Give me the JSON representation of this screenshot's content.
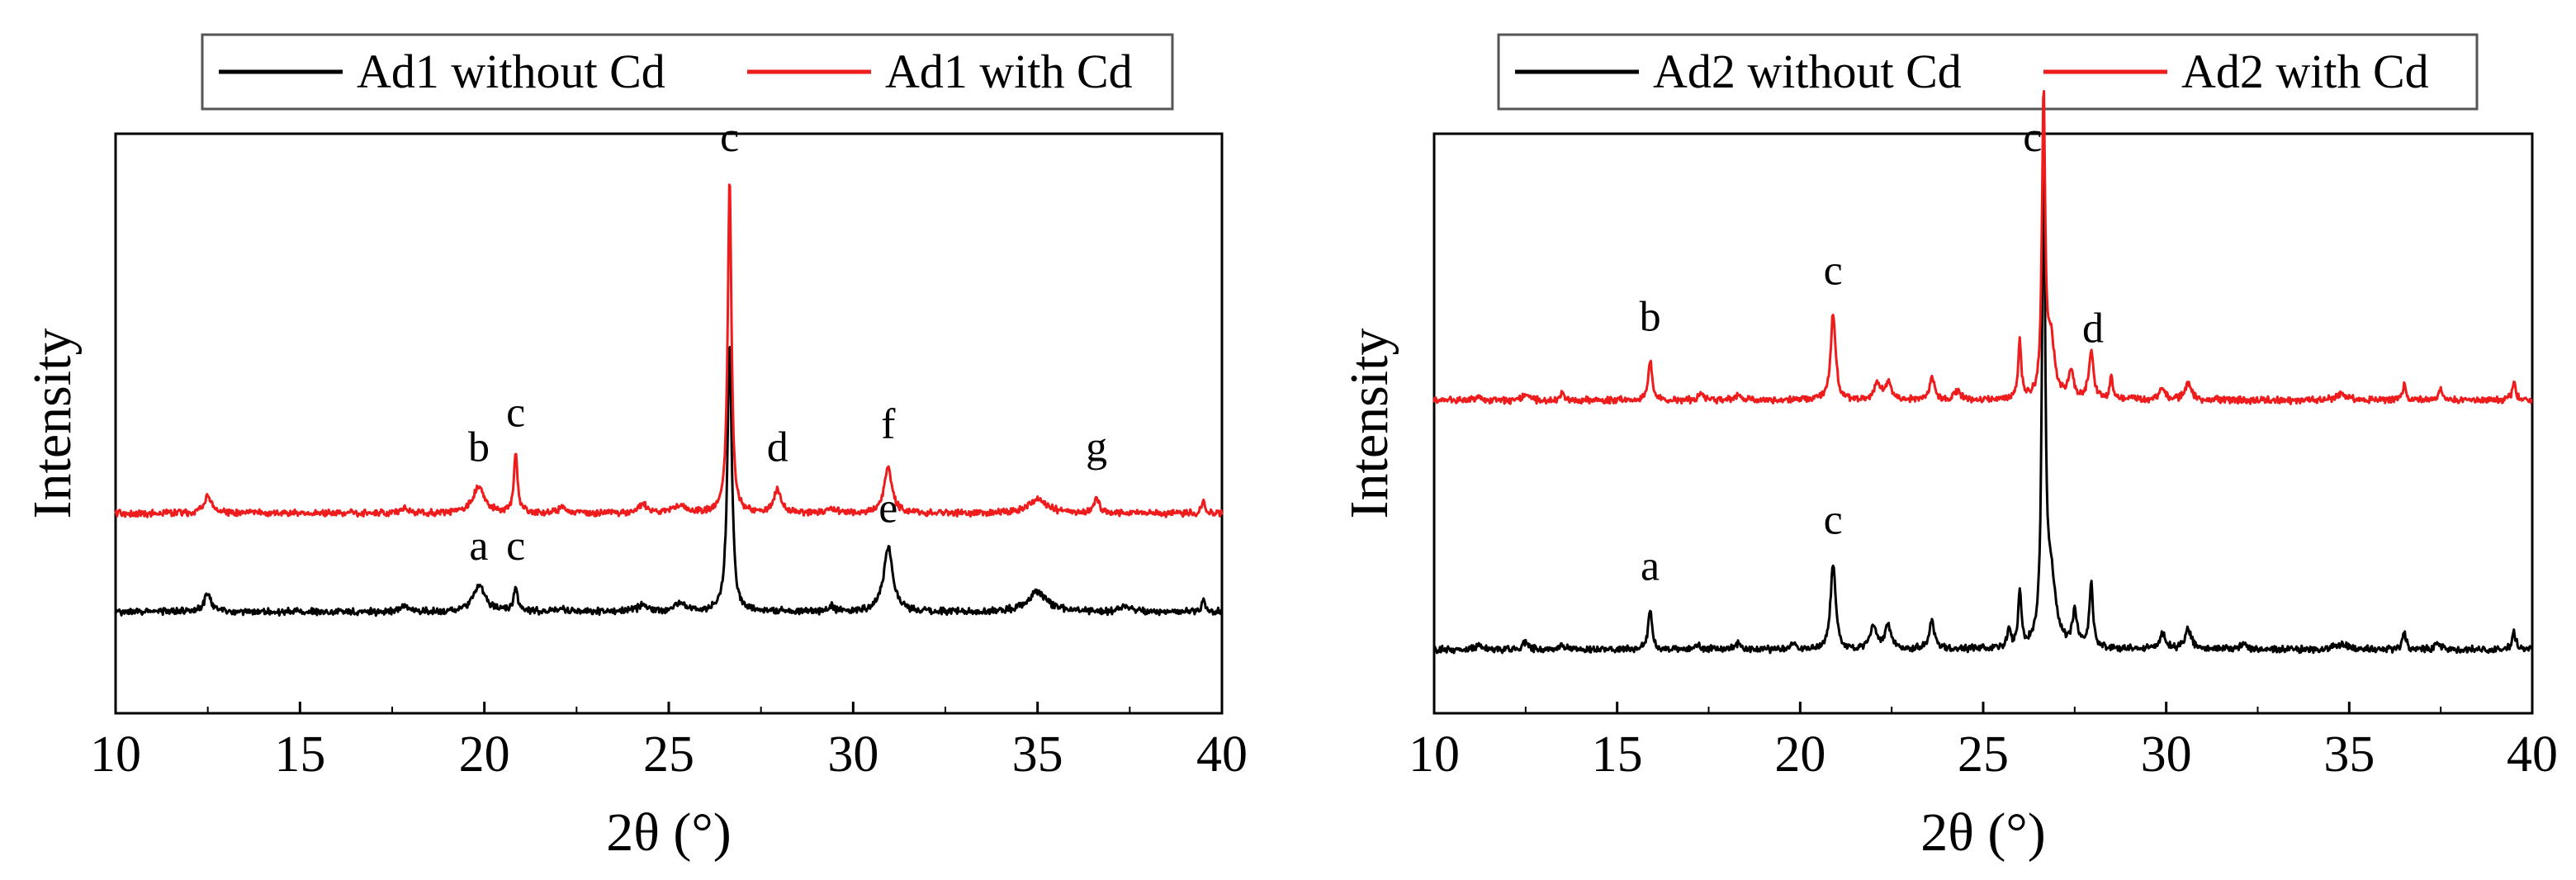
{
  "chart_data": [
    {
      "type": "line",
      "title": "",
      "xlabel": "2θ (°)",
      "ylabel": "Intensity",
      "xlim": [
        10,
        40
      ],
      "ylim": [
        0,
        100
      ],
      "xticks": [
        10,
        15,
        20,
        25,
        30,
        35,
        40
      ],
      "y_tick_labels": "none",
      "grid": false,
      "legend_position": "top",
      "series": [
        {
          "name": "Ad1 without Cd",
          "color": "#000000",
          "baseline": 17.5,
          "peaks": [
            [
              12.5,
              3.0,
              0.12
            ],
            [
              17.8,
              1.0,
              0.1
            ],
            [
              19.85,
              4.5,
              0.2
            ],
            [
              20.85,
              4.0,
              0.06
            ],
            [
              22.1,
              0.8,
              0.08
            ],
            [
              24.3,
              1.2,
              0.15
            ],
            [
              25.3,
              1.5,
              0.15
            ],
            [
              26.65,
              47.0,
              0.07
            ],
            [
              29.4,
              1.0,
              0.1
            ],
            [
              30.95,
              11.0,
              0.15
            ],
            [
              35.0,
              3.5,
              0.3
            ],
            [
              37.4,
              1.0,
              0.15
            ],
            [
              39.5,
              2.0,
              0.05
            ]
          ]
        },
        {
          "name": "Ad1 with Cd",
          "color": "#ee1c1c",
          "baseline": 34.5,
          "peaks": [
            [
              12.5,
              3.0,
              0.12
            ],
            [
              17.8,
              1.0,
              0.1
            ],
            [
              19.85,
              4.5,
              0.2
            ],
            [
              20.85,
              10.0,
              0.06
            ],
            [
              22.1,
              1.5,
              0.08
            ],
            [
              24.3,
              1.5,
              0.15
            ],
            [
              25.3,
              1.5,
              0.15
            ],
            [
              26.65,
              58.0,
              0.06
            ],
            [
              27.95,
              4.0,
              0.12
            ],
            [
              29.4,
              1.0,
              0.1
            ],
            [
              30.95,
              8.0,
              0.12
            ],
            [
              35.0,
              2.5,
              0.3
            ],
            [
              36.6,
              2.5,
              0.08
            ],
            [
              39.5,
              2.0,
              0.05
            ]
          ]
        }
      ],
      "annotations": [
        {
          "label": "a",
          "x": 19.85,
          "y": 26.5
        },
        {
          "label": "c",
          "x": 20.85,
          "y": 26.5
        },
        {
          "label": "e",
          "x": 30.95,
          "y": 33
        },
        {
          "label": "b",
          "x": 19.85,
          "y": 43.5
        },
        {
          "label": "c",
          "x": 20.85,
          "y": 49.5
        },
        {
          "label": "d",
          "x": 27.95,
          "y": 43.5
        },
        {
          "label": "f",
          "x": 30.95,
          "y": 47.5
        },
        {
          "label": "g",
          "x": 36.6,
          "y": 43.5
        },
        {
          "label": "c",
          "x": 26.65,
          "y": 97
        }
      ]
    },
    {
      "type": "line",
      "title": "",
      "xlabel": "2θ (°)",
      "ylabel": "Intensity",
      "xlim": [
        10,
        40
      ],
      "ylim": [
        0,
        100
      ],
      "xticks": [
        10,
        15,
        20,
        25,
        30,
        35,
        40
      ],
      "y_tick_labels": "none",
      "grid": false,
      "legend_position": "top",
      "series": [
        {
          "name": "Ad2 without Cd",
          "color": "#000000",
          "baseline": 11.0,
          "peaks": [
            [
              11.2,
              1.0,
              0.06
            ],
            [
              12.5,
              1.2,
              0.08
            ],
            [
              13.5,
              1.0,
              0.08
            ],
            [
              15.9,
              7.0,
              0.06
            ],
            [
              17.2,
              0.8,
              0.08
            ],
            [
              18.3,
              1.0,
              0.08
            ],
            [
              19.8,
              1.0,
              0.08
            ],
            [
              20.9,
              15.0,
              0.08
            ],
            [
              22.0,
              4.0,
              0.1
            ],
            [
              22.4,
              4.0,
              0.1
            ],
            [
              23.6,
              5.0,
              0.08
            ],
            [
              25.7,
              3.0,
              0.06
            ],
            [
              26.0,
              10.0,
              0.05
            ],
            [
              26.65,
              85.0,
              0.05
            ],
            [
              26.85,
              12.0,
              0.15
            ],
            [
              27.5,
              6.0,
              0.08
            ],
            [
              27.95,
              11.0,
              0.06
            ],
            [
              29.9,
              2.5,
              0.1
            ],
            [
              30.6,
              3.5,
              0.1
            ],
            [
              32.1,
              1.0,
              0.1
            ],
            [
              34.8,
              1.0,
              0.2
            ],
            [
              36.5,
              3.0,
              0.06
            ],
            [
              37.4,
              1.0,
              0.08
            ],
            [
              39.5,
              3.0,
              0.06
            ]
          ]
        },
        {
          "name": "Ad2 with Cd",
          "color": "#ee1c1c",
          "baseline": 54.0,
          "peaks": [
            [
              11.2,
              1.0,
              0.06
            ],
            [
              12.5,
              1.0,
              0.08
            ],
            [
              13.5,
              1.0,
              0.08
            ],
            [
              15.9,
              7.0,
              0.06
            ],
            [
              17.3,
              1.0,
              0.08
            ],
            [
              18.3,
              1.0,
              0.08
            ],
            [
              20.9,
              15.0,
              0.08
            ],
            [
              22.1,
              3.0,
              0.1
            ],
            [
              22.4,
              3.0,
              0.1
            ],
            [
              23.6,
              4.0,
              0.08
            ],
            [
              24.3,
              1.5,
              0.1
            ],
            [
              26.0,
              10.0,
              0.05
            ],
            [
              26.65,
              52.0,
              0.05
            ],
            [
              26.85,
              10.0,
              0.12
            ],
            [
              27.4,
              5.0,
              0.08
            ],
            [
              27.95,
              8.0,
              0.08
            ],
            [
              28.5,
              4.0,
              0.05
            ],
            [
              29.9,
              2.0,
              0.1
            ],
            [
              30.6,
              3.0,
              0.1
            ],
            [
              34.8,
              1.0,
              0.2
            ],
            [
              36.5,
              2.5,
              0.06
            ],
            [
              37.5,
              2.0,
              0.06
            ],
            [
              39.5,
              3.0,
              0.06
            ]
          ]
        }
      ],
      "annotations": [
        {
          "label": "a",
          "x": 15.9,
          "y": 23
        },
        {
          "label": "c",
          "x": 20.9,
          "y": 31
        },
        {
          "label": "b",
          "x": 15.9,
          "y": 66
        },
        {
          "label": "c",
          "x": 20.9,
          "y": 74
        },
        {
          "label": "d",
          "x": 28.0,
          "y": 64
        },
        {
          "label": "c",
          "x": 26.35,
          "y": 97
        }
      ]
    }
  ]
}
